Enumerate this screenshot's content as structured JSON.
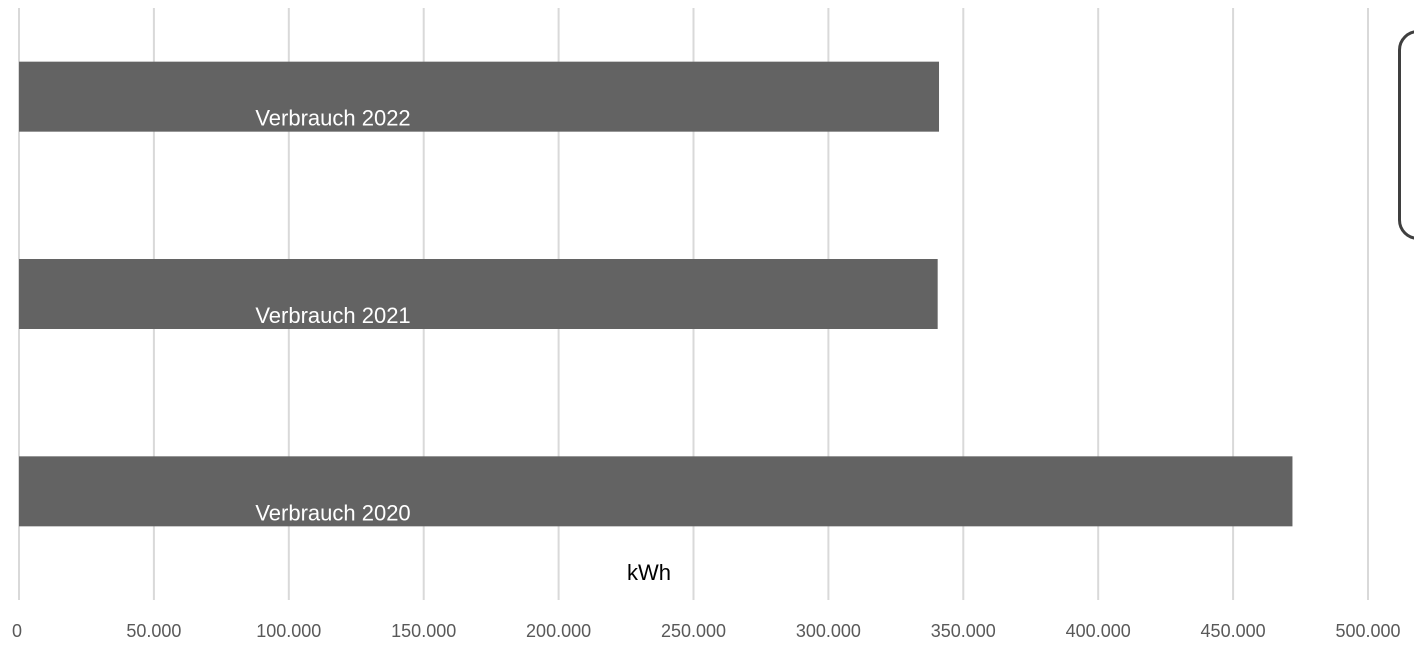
{
  "chart_data": {
    "type": "bar",
    "orientation": "horizontal",
    "categories": [
      "Verbrauch 2022",
      "Verbrauch 2021",
      "Verbrauch 2020"
    ],
    "values": [
      341000,
      340500,
      472000
    ],
    "xlabel": "kWh",
    "xlim": [
      0,
      500000
    ],
    "tick_values": [
      0,
      50000,
      100000,
      150000,
      200000,
      250000,
      300000,
      350000,
      400000,
      450000,
      500000
    ],
    "tick_labels": [
      "0",
      "50.000",
      "100.000",
      "150.000",
      "200.000",
      "250.000",
      "300.000",
      "350.000",
      "400.000",
      "450.000",
      "500.000"
    ],
    "grid": true,
    "bar_color": "#636363",
    "label_color": "#ffffff",
    "grid_color": "#d9d9d9",
    "axis_label_color": "#595959"
  }
}
